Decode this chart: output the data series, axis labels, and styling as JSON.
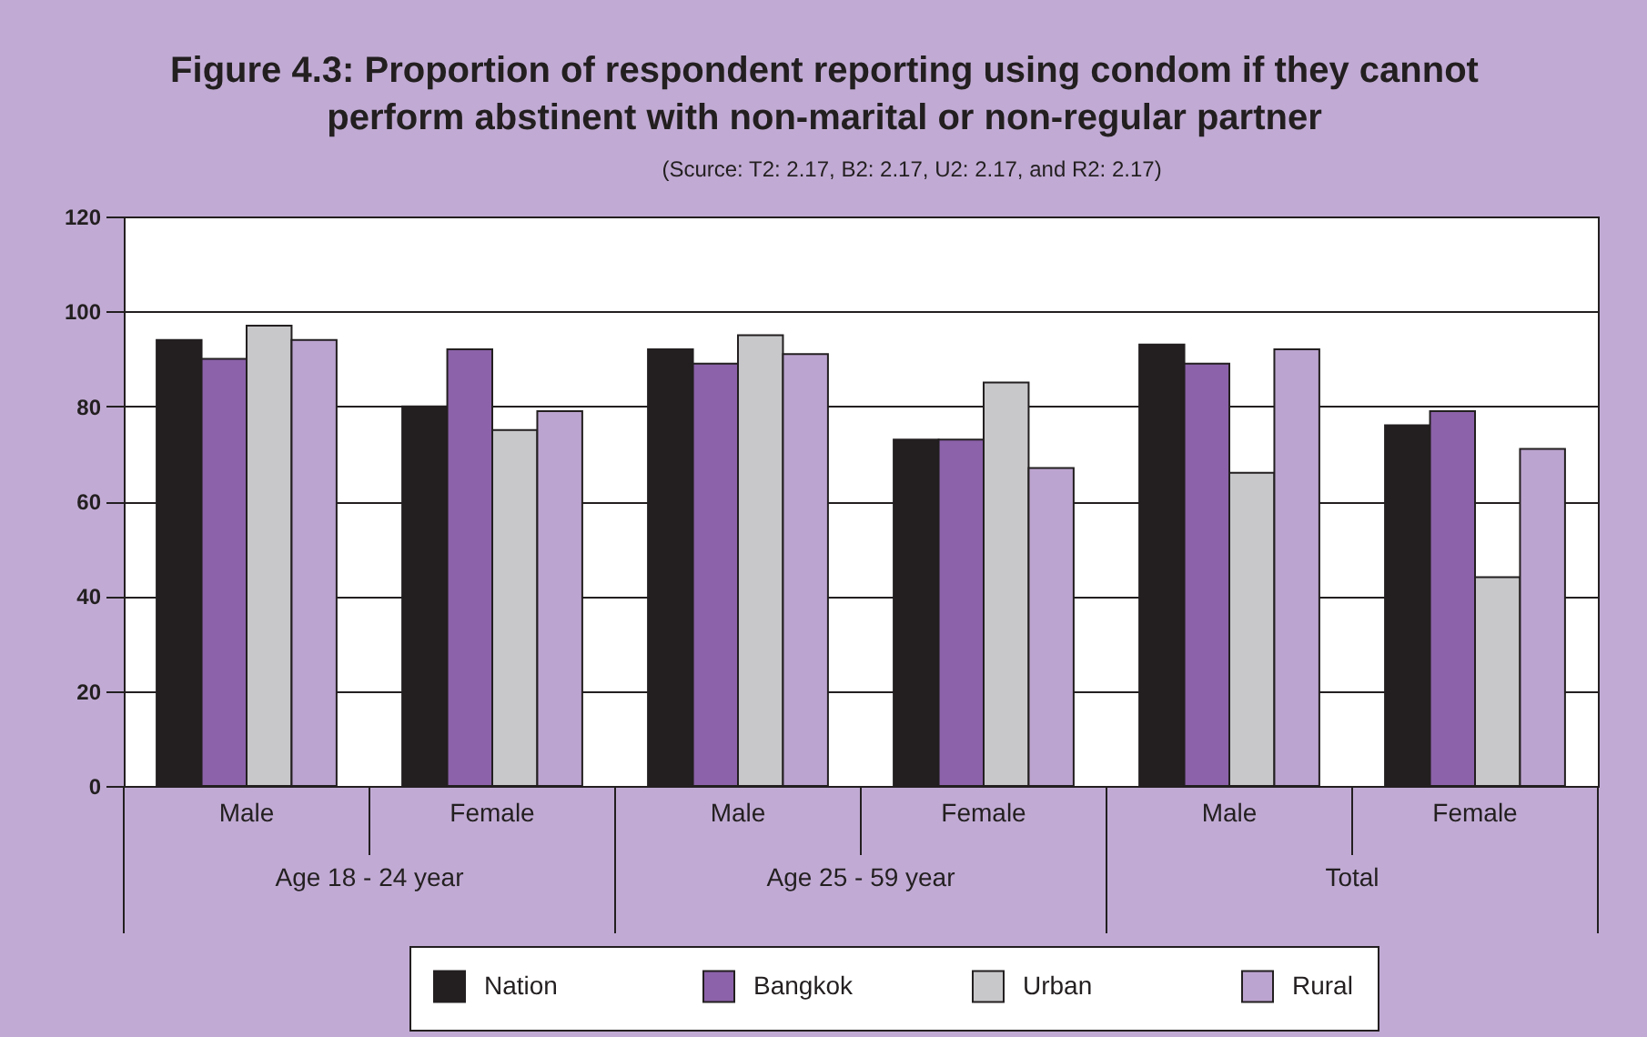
{
  "chart_data": {
    "type": "bar",
    "title": "Figure 4.3: Proportion of respondent reporting using condom if they cannot perform abstinent with non-marital or non-regular partner",
    "subtitle": "(Scurce: T2: 2.17, B2: 2.17, U2: 2.17, and R2: 2.17)",
    "categories": [
      "Male",
      "Female",
      "Male",
      "Female",
      "Male",
      "Female"
    ],
    "annotations": [
      "Age 18 - 24 year",
      "Age 25 - 59 year",
      "Total"
    ],
    "series": [
      {
        "name": "Nation",
        "color": "#231f20",
        "values": [
          94,
          80,
          92,
          73,
          93,
          76
        ]
      },
      {
        "name": "Bangkok",
        "color": "#8c62aa",
        "values": [
          90,
          92,
          89,
          73,
          89,
          79
        ]
      },
      {
        "name": "Urban",
        "color": "#c8c8ca",
        "values": [
          97,
          75,
          95,
          85,
          66,
          44
        ]
      },
      {
        "name": "Rural",
        "color": "#bca4d0",
        "values": [
          94,
          79,
          91,
          67,
          92,
          71
        ]
      }
    ],
    "ylim": [
      0,
      120
    ],
    "yticks": [
      0,
      20,
      40,
      60,
      80,
      100,
      120
    ],
    "grid": "y",
    "legend": "bottom"
  }
}
